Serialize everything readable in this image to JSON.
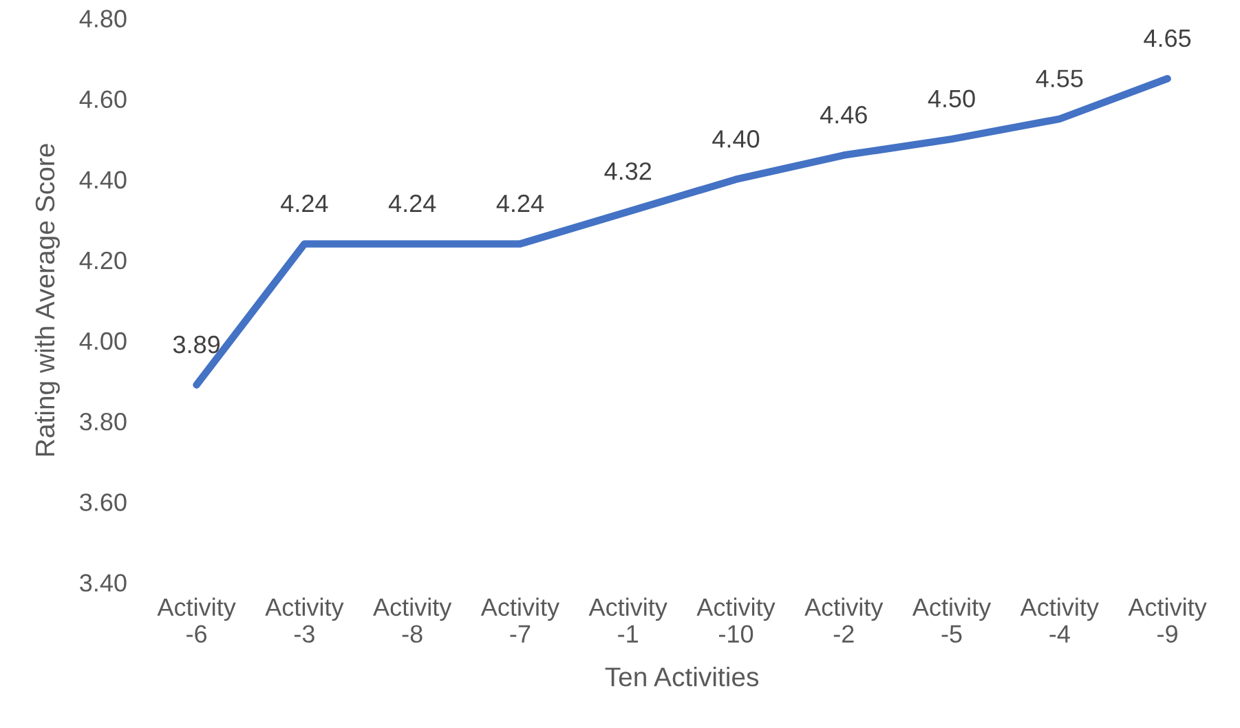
{
  "chart_data": {
    "type": "line",
    "xlabel": "Ten Activities",
    "ylabel": "Rating with Average Score",
    "categories": [
      "Activity -6",
      "Activity -3",
      "Activity -8",
      "Activity -7",
      "Activity -1",
      "Activity -10",
      "Activity -2",
      "Activity -5",
      "Activity -4",
      "Activity -9"
    ],
    "series": [
      {
        "color": "#4472c4",
        "values": [
          3.89,
          4.24,
          4.24,
          4.24,
          4.32,
          4.4,
          4.46,
          4.5,
          4.55,
          4.65
        ],
        "value_labels": [
          "3.89",
          "4.24",
          "4.24",
          "4.24",
          "4.32",
          "4.40",
          "4.46",
          "4.50",
          "4.55",
          "4.65"
        ]
      }
    ],
    "ylim": [
      3.4,
      4.8
    ],
    "yticks": [
      {
        "value": 3.4,
        "label": "3.40"
      },
      {
        "value": 3.6,
        "label": "3.60"
      },
      {
        "value": 3.8,
        "label": "3.80"
      },
      {
        "value": 4.0,
        "label": "4.00"
      },
      {
        "value": 4.2,
        "label": "4.20"
      },
      {
        "value": 4.4,
        "label": "4.40"
      },
      {
        "value": 4.6,
        "label": "4.60"
      },
      {
        "value": 4.8,
        "label": "4.80"
      }
    ],
    "grid": false,
    "marker": "none",
    "line_style": "solid"
  }
}
